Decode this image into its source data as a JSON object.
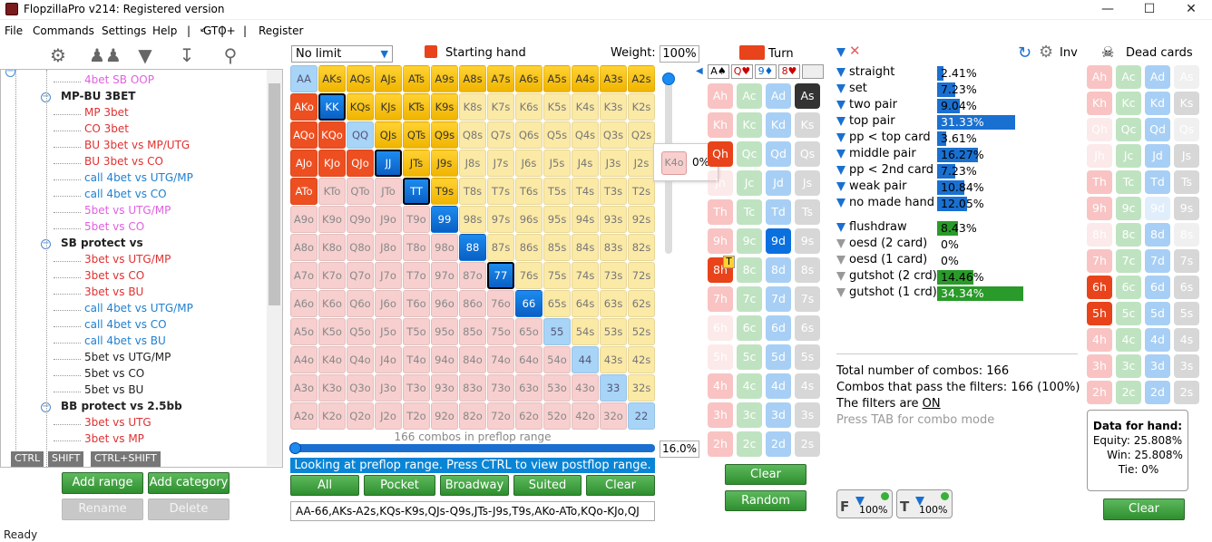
{
  "window": {
    "title": "FlopzillaPro v214: Registered version",
    "icon": "app-icon"
  },
  "menu": [
    "File",
    "Commands",
    "Settings",
    "Help",
    "|",
    "↙",
    "|",
    "GTO+",
    "|",
    "Register"
  ],
  "toolbar_icons": [
    "gear-icon",
    "users-icon",
    "filter-add-icon",
    "import-icon",
    "search-icon"
  ],
  "tree": [
    {
      "label": "4bet SB OOP",
      "color": "#e060e0",
      "kind": "item"
    },
    {
      "label": "MP-BU 3BET",
      "kind": "category"
    },
    {
      "label": "MP 3bet",
      "color": "#e03030",
      "kind": "item"
    },
    {
      "label": "CO 3bet",
      "color": "#e03030",
      "kind": "item"
    },
    {
      "label": "BU 3bet vs MP/UTG",
      "color": "#e03030",
      "kind": "item"
    },
    {
      "label": "BU 3bet vs CO",
      "color": "#e03030",
      "kind": "item"
    },
    {
      "label": "call 4bet vs UTG/MP",
      "color": "#2080d0",
      "kind": "item"
    },
    {
      "label": "call 4bet vs CO",
      "color": "#2080d0",
      "kind": "item"
    },
    {
      "label": "5bet vs UTG/MP",
      "color": "#e060e0",
      "kind": "item"
    },
    {
      "label": "5bet vs CO",
      "color": "#e060e0",
      "kind": "item"
    },
    {
      "label": "SB protect vs",
      "kind": "category"
    },
    {
      "label": "3bet vs UTG/MP",
      "color": "#e03030",
      "kind": "item"
    },
    {
      "label": "3bet vs CO",
      "color": "#e03030",
      "kind": "item"
    },
    {
      "label": "3bet vs BU",
      "color": "#e03030",
      "kind": "item"
    },
    {
      "label": "call 4bet vs UTG/MP",
      "color": "#2080d0",
      "kind": "item"
    },
    {
      "label": "call 4bet vs CO",
      "color": "#2080d0",
      "kind": "item"
    },
    {
      "label": "call 4bet vs BU",
      "color": "#2080d0",
      "kind": "item"
    },
    {
      "label": "5bet vs UTG/MP",
      "color": "#222222",
      "kind": "item"
    },
    {
      "label": "5bet vs CO",
      "color": "#222222",
      "kind": "item"
    },
    {
      "label": "5bet vs BU",
      "color": "#222222",
      "kind": "item"
    },
    {
      "label": "BB protect vs 2.5bb",
      "kind": "category"
    },
    {
      "label": "3bet vs UTG",
      "color": "#e03030",
      "kind": "item"
    },
    {
      "label": "3bet vs MP",
      "color": "#e03030",
      "kind": "item"
    }
  ],
  "kbd_tags": [
    "CTRL",
    "SHIFT",
    "CTRL+SHIFT"
  ],
  "left_buttons": {
    "add_range": "Add range",
    "add_category": "Add category",
    "rename": "Rename",
    "delete": "Delete"
  },
  "range": {
    "limit": "No limit",
    "starting_hand_label": "Starting hand",
    "weight_label": "Weight:",
    "weight_value": "100%",
    "combos_text": "166 combos in preflop range",
    "percent": "16.0%",
    "status": "Looking at preflop range. Press CTRL to view postflop range.",
    "popup_hand": "K4o",
    "popup_value": "0%",
    "buttons": [
      "All",
      "Pocket",
      "Broadway",
      "Suited",
      "Clear"
    ],
    "text": "AA-66,AKs-A2s,KQs-K9s,QJs-Q9s,JTs-J9s,T9s,AKo-ATo,KQo-KJo,QJ"
  },
  "grid": [
    [
      "AA",
      "AKs",
      "AQs",
      "AJs",
      "ATs",
      "A9s",
      "A8s",
      "A7s",
      "A6s",
      "A5s",
      "A4s",
      "A3s",
      "A2s"
    ],
    [
      "AKo",
      "KK",
      "KQs",
      "KJs",
      "KTs",
      "K9s",
      "K8s",
      "K7s",
      "K6s",
      "K5s",
      "K4s",
      "K3s",
      "K2s"
    ],
    [
      "AQo",
      "KQo",
      "QQ",
      "QJs",
      "QTs",
      "Q9s",
      "Q8s",
      "Q7s",
      "Q6s",
      "Q5s",
      "Q4s",
      "Q3s",
      "Q2s"
    ],
    [
      "AJo",
      "KJo",
      "QJo",
      "JJ",
      "JTs",
      "J9s",
      "J8s",
      "J7s",
      "J6s",
      "J5s",
      "J4s",
      "J3s",
      "J2s"
    ],
    [
      "ATo",
      "KTo",
      "QTo",
      "JTo",
      "TT",
      "T9s",
      "T8s",
      "T7s",
      "T6s",
      "T5s",
      "T4s",
      "T3s",
      "T2s"
    ],
    [
      "A9o",
      "K9o",
      "Q9o",
      "J9o",
      "T9o",
      "99",
      "98s",
      "97s",
      "96s",
      "95s",
      "94s",
      "93s",
      "92s"
    ],
    [
      "A8o",
      "K8o",
      "Q8o",
      "J8o",
      "T8o",
      "98o",
      "88",
      "87s",
      "86s",
      "85s",
      "84s",
      "83s",
      "82s"
    ],
    [
      "A7o",
      "K7o",
      "Q7o",
      "J7o",
      "T7o",
      "97o",
      "87o",
      "77",
      "76s",
      "75s",
      "74s",
      "73s",
      "72s"
    ],
    [
      "A6o",
      "K6o",
      "Q6o",
      "J6o",
      "T6o",
      "96o",
      "86o",
      "76o",
      "66",
      "65s",
      "64s",
      "63s",
      "62s"
    ],
    [
      "A5o",
      "K5o",
      "Q5o",
      "J5o",
      "T5o",
      "95o",
      "85o",
      "75o",
      "65o",
      "55",
      "54s",
      "53s",
      "52s"
    ],
    [
      "A4o",
      "K4o",
      "Q4o",
      "J4o",
      "T4o",
      "94o",
      "84o",
      "74o",
      "64o",
      "54o",
      "44",
      "43s",
      "42s"
    ],
    [
      "A3o",
      "K3o",
      "Q3o",
      "J3o",
      "T3o",
      "93o",
      "83o",
      "73o",
      "63o",
      "53o",
      "43o",
      "33",
      "32s"
    ],
    [
      "A2o",
      "K2o",
      "Q2o",
      "J2o",
      "T2o",
      "92o",
      "82o",
      "72o",
      "62o",
      "52o",
      "42o",
      "32o",
      "22"
    ]
  ],
  "turn": {
    "title": "Turn",
    "board": [
      "A♠",
      "Q♥",
      "9♦",
      "8♥"
    ],
    "flag": "T",
    "clear": "Clear",
    "random": "Random"
  },
  "card_ranks": [
    "A",
    "K",
    "Q",
    "J",
    "T",
    "9",
    "8",
    "7",
    "6",
    "5",
    "4",
    "3",
    "2"
  ],
  "filters": [
    {
      "label": "straight",
      "pct": "2.41%",
      "frac": 0.024,
      "funnel": "blue",
      "bar": "blue"
    },
    {
      "label": "set",
      "pct": "7.23%",
      "frac": 0.072,
      "funnel": "blue",
      "bar": "blue"
    },
    {
      "label": "two pair",
      "pct": "9.04%",
      "frac": 0.09,
      "funnel": "blue",
      "bar": "blue"
    },
    {
      "label": "top pair",
      "pct": "31.33%",
      "frac": 0.313,
      "funnel": "blue",
      "bar": "blue"
    },
    {
      "label": "pp < top card",
      "pct": "3.61%",
      "frac": 0.036,
      "funnel": "blue",
      "bar": "blue"
    },
    {
      "label": "middle pair",
      "pct": "16.27%",
      "frac": 0.163,
      "funnel": "blue",
      "bar": "blue"
    },
    {
      "label": "pp < 2nd card",
      "pct": "7.23%",
      "frac": 0.072,
      "funnel": "blue",
      "bar": "blue"
    },
    {
      "label": "weak pair",
      "pct": "10.84%",
      "frac": 0.108,
      "funnel": "blue",
      "bar": "blue"
    },
    {
      "label": "no made hand",
      "pct": "12.05%",
      "frac": 0.121,
      "funnel": "blue",
      "bar": "blue"
    },
    {
      "label": "flushdraw",
      "pct": "8.43%",
      "frac": 0.084,
      "funnel": "blue",
      "bar": "green"
    },
    {
      "label": "oesd (2 card)",
      "pct": "0%",
      "frac": 0,
      "funnel": "grey",
      "bar": "green"
    },
    {
      "label": "oesd (1 card)",
      "pct": "0%",
      "frac": 0,
      "funnel": "grey",
      "bar": "green"
    },
    {
      "label": "gutshot (2 crd)",
      "pct": "14.46%",
      "frac": 0.145,
      "funnel": "grey",
      "bar": "green"
    },
    {
      "label": "gutshot (1 crd)",
      "pct": "34.34%",
      "frac": 0.343,
      "funnel": "grey",
      "bar": "green"
    }
  ],
  "totals": {
    "line1": "Total number of combos: 166",
    "line2": "Combos that pass the filters: 166 (100%)",
    "line3_prefix": "The filters are ",
    "line3_on": "ON",
    "line4": "Press TAB for combo mode"
  },
  "bottom_toggles": [
    {
      "letter": "F",
      "value": "100%"
    },
    {
      "letter": "T",
      "value": "100%"
    }
  ],
  "inv_label": "Inv",
  "dead": {
    "title": "Dead cards",
    "clear": "Clear",
    "data_title": "Data for hand:",
    "equity": "Equity: 25.808%",
    "win": "Win: 25.808%",
    "tie": "Tie: 0%"
  },
  "status_line": "Ready",
  "colors": {
    "accent": "#1a70d0",
    "green": "#2f8f2f",
    "gold": "#f0b400",
    "red": "#e8431a"
  }
}
